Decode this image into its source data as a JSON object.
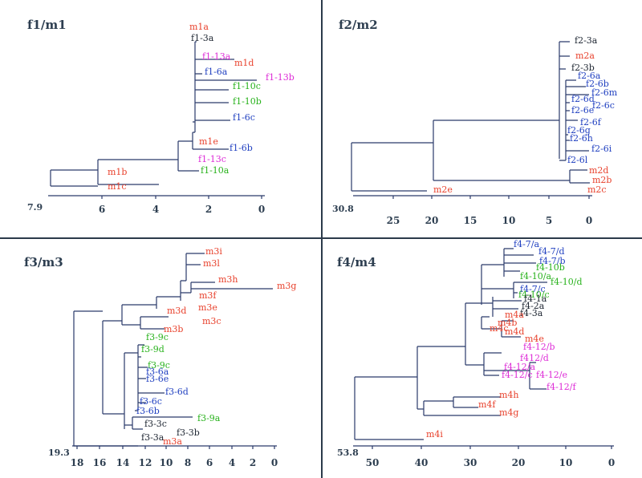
{
  "colors": {
    "red": "#e8412c",
    "dark": "#1c2430",
    "magenta": "#dd2ad6",
    "green": "#28b21c",
    "blue": "#1f3fc0",
    "line": "#2a3a6a"
  },
  "panels": [
    {
      "title": "f1/m1",
      "axis": {
        "min_label": "7.9",
        "ticks": [
          "6",
          "4",
          "2",
          "0"
        ]
      },
      "leaves": [
        {
          "label": "m1a",
          "color": "red"
        },
        {
          "label": "f1-3a",
          "color": "dark"
        },
        {
          "label": "f1-13a",
          "color": "magenta"
        },
        {
          "label": "m1d",
          "color": "red"
        },
        {
          "label": "f1-6a",
          "color": "blue"
        },
        {
          "label": "f1-13b",
          "color": "magenta"
        },
        {
          "label": "f1-10c",
          "color": "green"
        },
        {
          "label": "f1-10b",
          "color": "green"
        },
        {
          "label": "f1-6c",
          "color": "blue"
        },
        {
          "label": "m1e",
          "color": "red"
        },
        {
          "label": "f1-6b",
          "color": "blue"
        },
        {
          "label": "f1-13c",
          "color": "magenta"
        },
        {
          "label": "f1-10a",
          "color": "green"
        },
        {
          "label": "m1b",
          "color": "red"
        },
        {
          "label": "m1c",
          "color": "red"
        }
      ]
    },
    {
      "title": "f2/m2",
      "axis": {
        "min_label": "30.8",
        "ticks": [
          "25",
          "20",
          "15",
          "10",
          "5",
          "0"
        ]
      },
      "leaves": [
        {
          "label": "f2-3a",
          "color": "dark"
        },
        {
          "label": "m2a",
          "color": "red"
        },
        {
          "label": "f2-3b",
          "color": "dark"
        },
        {
          "label": "f2-6a",
          "color": "blue"
        },
        {
          "label": "f2-6b",
          "color": "blue"
        },
        {
          "label": "f2-6m",
          "color": "blue"
        },
        {
          "label": "f2-6d",
          "color": "blue"
        },
        {
          "label": "f2-6c",
          "color": "blue"
        },
        {
          "label": "f2-6e",
          "color": "blue"
        },
        {
          "label": "f2-6f",
          "color": "blue"
        },
        {
          "label": "f2-6g",
          "color": "blue"
        },
        {
          "label": "f2-6h",
          "color": "blue"
        },
        {
          "label": "f2-6i",
          "color": "blue"
        },
        {
          "label": "f2-6l",
          "color": "blue"
        },
        {
          "label": "m2d",
          "color": "red"
        },
        {
          "label": "m2b",
          "color": "red"
        },
        {
          "label": "m2c",
          "color": "red"
        },
        {
          "label": "m2e",
          "color": "red"
        }
      ]
    },
    {
      "title": "f3/m3",
      "axis": {
        "min_label": "19.3",
        "ticks": [
          "18",
          "16",
          "14",
          "12",
          "10",
          "8",
          "6",
          "4",
          "2",
          "0"
        ]
      },
      "leaves": [
        {
          "label": "m3i",
          "color": "red"
        },
        {
          "label": "m3l",
          "color": "red"
        },
        {
          "label": "m3h",
          "color": "red"
        },
        {
          "label": "m3g",
          "color": "red"
        },
        {
          "label": "m3f",
          "color": "red"
        },
        {
          "label": "m3e",
          "color": "red"
        },
        {
          "label": "m3d",
          "color": "red"
        },
        {
          "label": "m3c",
          "color": "red"
        },
        {
          "label": "m3b",
          "color": "red"
        },
        {
          "label": "f3-9c",
          "color": "green"
        },
        {
          "label": "f3-9d",
          "color": "green"
        },
        {
          "label": "f3-9c",
          "color": "green"
        },
        {
          "label": "f3-6a",
          "color": "blue"
        },
        {
          "label": "f3-6e",
          "color": "blue"
        },
        {
          "label": "f3-6d",
          "color": "blue"
        },
        {
          "label": "f3-6c",
          "color": "blue"
        },
        {
          "label": "f3-6b",
          "color": "blue"
        },
        {
          "label": "f3-9a",
          "color": "green"
        },
        {
          "label": "f3-3c",
          "color": "dark"
        },
        {
          "label": "f3-3b",
          "color": "dark"
        },
        {
          "label": "f3-3a",
          "color": "dark"
        },
        {
          "label": "m3a",
          "color": "red"
        }
      ]
    },
    {
      "title": "f4/m4",
      "axis": {
        "min_label": "53.8",
        "ticks": [
          "50",
          "40",
          "30",
          "20",
          "10",
          "0"
        ]
      },
      "leaves": [
        {
          "label": "f4-7/a",
          "color": "blue"
        },
        {
          "label": "f4-7/d",
          "color": "blue"
        },
        {
          "label": "f4-7/b",
          "color": "blue"
        },
        {
          "label": "f4-10b",
          "color": "green"
        },
        {
          "label": "f4-10/a",
          "color": "green"
        },
        {
          "label": "f4-10/d",
          "color": "green"
        },
        {
          "label": "f4-7/c",
          "color": "blue"
        },
        {
          "label": "f4-10/c",
          "color": "green"
        },
        {
          "label": "f4-1a",
          "color": "dark"
        },
        {
          "label": "f4-2a",
          "color": "dark"
        },
        {
          "label": "f4-3a",
          "color": "dark"
        },
        {
          "label": "m4a",
          "color": "red"
        },
        {
          "label": "m4b",
          "color": "red"
        },
        {
          "label": "m4c",
          "color": "red"
        },
        {
          "label": "m4d",
          "color": "red"
        },
        {
          "label": "m4e",
          "color": "red"
        },
        {
          "label": "f4-12/b",
          "color": "magenta"
        },
        {
          "label": "f412/d",
          "color": "magenta"
        },
        {
          "label": "f4-12/a",
          "color": "magenta"
        },
        {
          "label": "f4-12/c",
          "color": "magenta"
        },
        {
          "label": "f4-12/e",
          "color": "magenta"
        },
        {
          "label": "f4-12/f",
          "color": "magenta"
        },
        {
          "label": "m4h",
          "color": "red"
        },
        {
          "label": "m4f",
          "color": "red"
        },
        {
          "label": "m4g",
          "color": "red"
        },
        {
          "label": "m4i",
          "color": "red"
        }
      ]
    }
  ]
}
